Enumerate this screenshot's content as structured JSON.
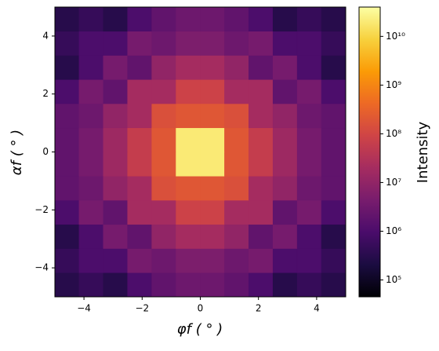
{
  "chart_data": {
    "type": "heatmap",
    "xlabel": "φf ( ° )",
    "ylabel": "αf ( ° )",
    "colorbar_label": "Intensity",
    "x": [
      -4.583,
      -3.75,
      -2.917,
      -2.083,
      -1.25,
      -0.417,
      0.417,
      1.25,
      2.083,
      2.917,
      3.75,
      4.583
    ],
    "y": [
      -4.583,
      -3.75,
      -2.917,
      -2.083,
      -1.25,
      -0.417,
      0.417,
      1.25,
      2.083,
      2.917,
      3.75,
      4.583
    ],
    "z": [
      [
        300000.0,
        500000.0,
        300000.0,
        1000000.0,
        2000000.0,
        3000000.0,
        3000000.0,
        2000000.0,
        1000000.0,
        300000.0,
        500000.0,
        300000.0
      ],
      [
        500000.0,
        1000000.0,
        1000000.0,
        4000000.0,
        3000000.0,
        5000000.0,
        5000000.0,
        3000000.0,
        4000000.0,
        1000000.0,
        1000000.0,
        500000.0
      ],
      [
        300000.0,
        1000000.0,
        4000000.0,
        2000000.0,
        10000000.0,
        20000000.0,
        20000000.0,
        10000000.0,
        2000000.0,
        4000000.0,
        1000000.0,
        300000.0
      ],
      [
        1000000.0,
        4000000.0,
        2000000.0,
        20000000.0,
        20000000.0,
        80000000.0,
        80000000.0,
        20000000.0,
        20000000.0,
        2000000.0,
        4000000.0,
        1000000.0
      ],
      [
        2000000.0,
        3000000.0,
        10000000.0,
        20000000.0,
        150000000.0,
        200000000.0,
        200000000.0,
        150000000.0,
        20000000.0,
        10000000.0,
        3000000.0,
        2000000.0
      ],
      [
        2000000.0,
        4000000.0,
        15000000.0,
        60000000.0,
        200000000.0,
        20000000000.0,
        20000000000.0,
        200000000.0,
        60000000.0,
        15000000.0,
        4000000.0,
        2000000.0
      ],
      [
        2000000.0,
        4000000.0,
        15000000.0,
        60000000.0,
        200000000.0,
        20000000000.0,
        20000000000.0,
        200000000.0,
        60000000.0,
        15000000.0,
        4000000.0,
        2000000.0
      ],
      [
        2000000.0,
        3000000.0,
        10000000.0,
        20000000.0,
        150000000.0,
        200000000.0,
        200000000.0,
        150000000.0,
        20000000.0,
        10000000.0,
        3000000.0,
        2000000.0
      ],
      [
        1000000.0,
        4000000.0,
        2000000.0,
        20000000.0,
        20000000.0,
        80000000.0,
        80000000.0,
        20000000.0,
        20000000.0,
        2000000.0,
        4000000.0,
        1000000.0
      ],
      [
        300000.0,
        1000000.0,
        4000000.0,
        2000000.0,
        10000000.0,
        20000000.0,
        20000000.0,
        10000000.0,
        2000000.0,
        4000000.0,
        1000000.0,
        300000.0
      ],
      [
        500000.0,
        1000000.0,
        1000000.0,
        4000000.0,
        3000000.0,
        5000000.0,
        5000000.0,
        3000000.0,
        4000000.0,
        1000000.0,
        1000000.0,
        500000.0
      ],
      [
        300000.0,
        500000.0,
        300000.0,
        1000000.0,
        2000000.0,
        3000000.0,
        3000000.0,
        2000000.0,
        1000000.0,
        300000.0,
        500000.0,
        300000.0
      ]
    ],
    "xlim": [
      -5,
      5
    ],
    "ylim": [
      -5,
      5
    ],
    "xticks": [
      -4,
      -2,
      0,
      2,
      4
    ],
    "yticks": [
      -4,
      -2,
      0,
      2,
      4
    ],
    "xtick_labels": [
      "−4",
      "−2",
      "0",
      "2",
      "4"
    ],
    "ytick_labels": [
      "−4",
      "−2",
      "0",
      "2",
      "4"
    ],
    "colorbar_lim": [
      45000,
      40000000000
    ],
    "colorbar_log": true,
    "colorbar_ticks": [
      {
        "value": 100000,
        "label": "10⁵"
      },
      {
        "value": 1000000,
        "label": "10⁶"
      },
      {
        "value": 10000000,
        "label": "10⁷"
      },
      {
        "value": 100000000,
        "label": "10⁸"
      },
      {
        "value": 1000000000,
        "label": "10⁹"
      },
      {
        "value": 10000000000,
        "label": "10¹⁰"
      }
    ],
    "colormap": [
      "#000004",
      "#1b0c41",
      "#4a0c6b",
      "#781c6d",
      "#a52c60",
      "#cf4446",
      "#ed6925",
      "#fb9b06",
      "#f7d13d",
      "#fcffa4"
    ]
  }
}
